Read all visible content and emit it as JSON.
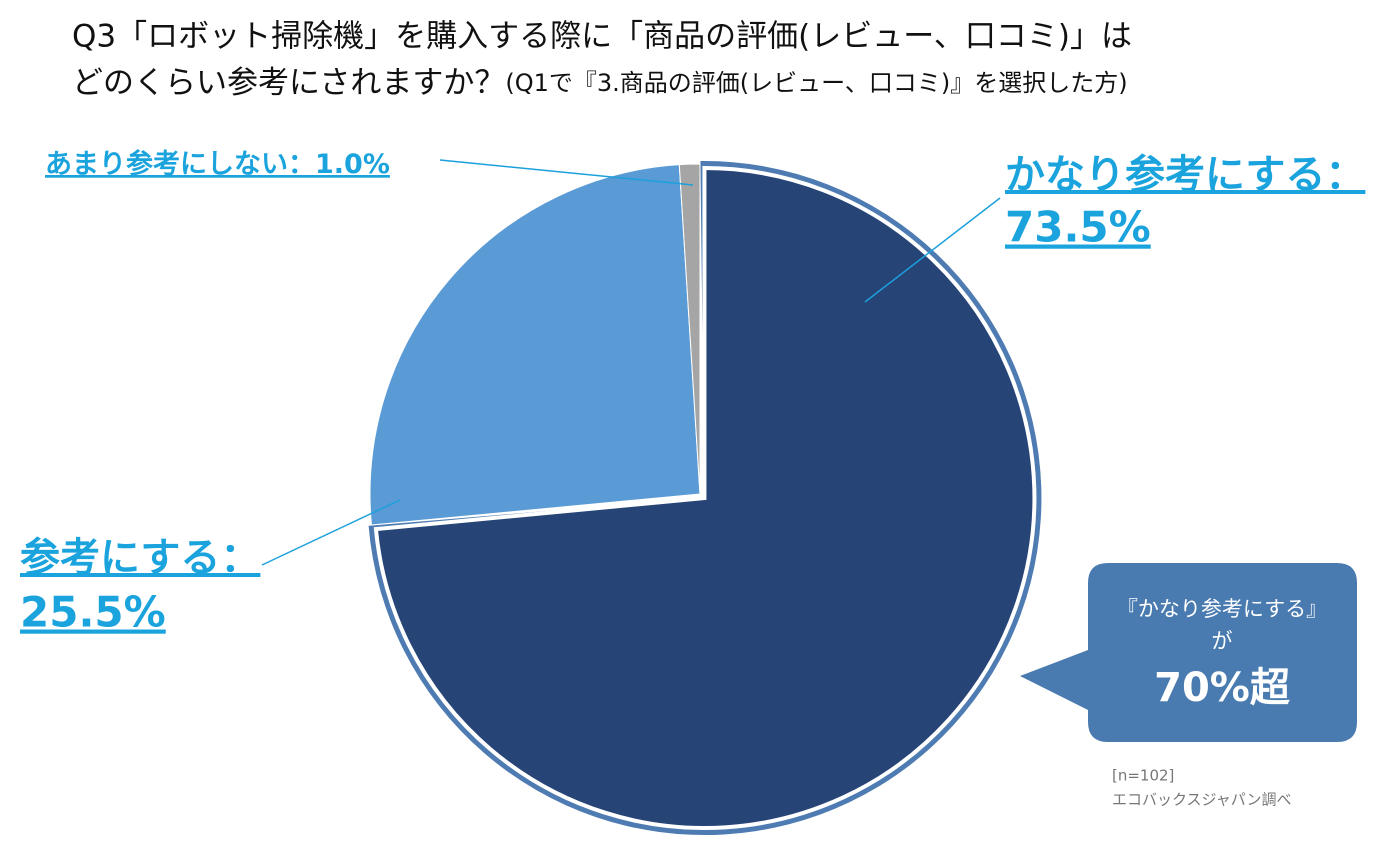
{
  "chart_data": {
    "type": "pie",
    "title": "Q3「ロボット掃除機」を購入する際に「商品の評価(レビュー、口コミ)」は",
    "title_line2": "どのくらい参考にされますか？",
    "subtitle": "(Q1で『3.商品の評価(レビュー、口コミ)』を選択した方)",
    "categories": [
      "かなり参考にする：",
      "参考にする：",
      "あまり参考にしない："
    ],
    "values": [
      73.5,
      25.5,
      1.0
    ],
    "value_labels": [
      "73.5%",
      "25.5%",
      "1.0%"
    ],
    "colors": [
      "#274477",
      "#5b9bd5",
      "#a5a5a5"
    ],
    "annotation": [
      "『かなり参考にする』",
      "が",
      "70%超"
    ],
    "source": [
      "[n=102]",
      "エコバックスジャパン調べ"
    ]
  }
}
